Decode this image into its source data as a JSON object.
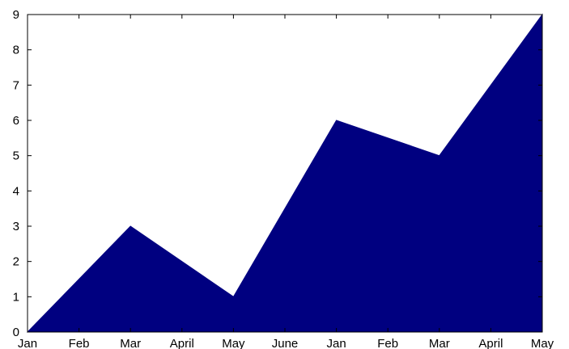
{
  "chart_data": {
    "type": "area",
    "title": "",
    "xlabel": "",
    "ylabel": "",
    "categories": [
      "Jan",
      "Feb",
      "Mar",
      "April",
      "May",
      "June",
      "Jan",
      "Feb",
      "Mar",
      "April",
      "May"
    ],
    "series": [
      {
        "values": [
          0,
          null,
          3,
          null,
          1,
          null,
          6,
          null,
          5,
          null,
          9
        ]
      }
    ],
    "vertices": [
      {
        "category_index": 0,
        "value": 0
      },
      {
        "category_index": 2,
        "value": 3
      },
      {
        "category_index": 4,
        "value": 1
      },
      {
        "category_index": 6,
        "value": 6
      },
      {
        "category_index": 8,
        "value": 5
      },
      {
        "category_index": 10,
        "value": 9
      }
    ],
    "ylim": [
      0,
      9
    ],
    "yticks": [
      0,
      1,
      2,
      3,
      4,
      5,
      6,
      7,
      8,
      9
    ],
    "grid": false,
    "legend": "none",
    "fill_color": "#000080",
    "background_color": "#ffffff"
  }
}
